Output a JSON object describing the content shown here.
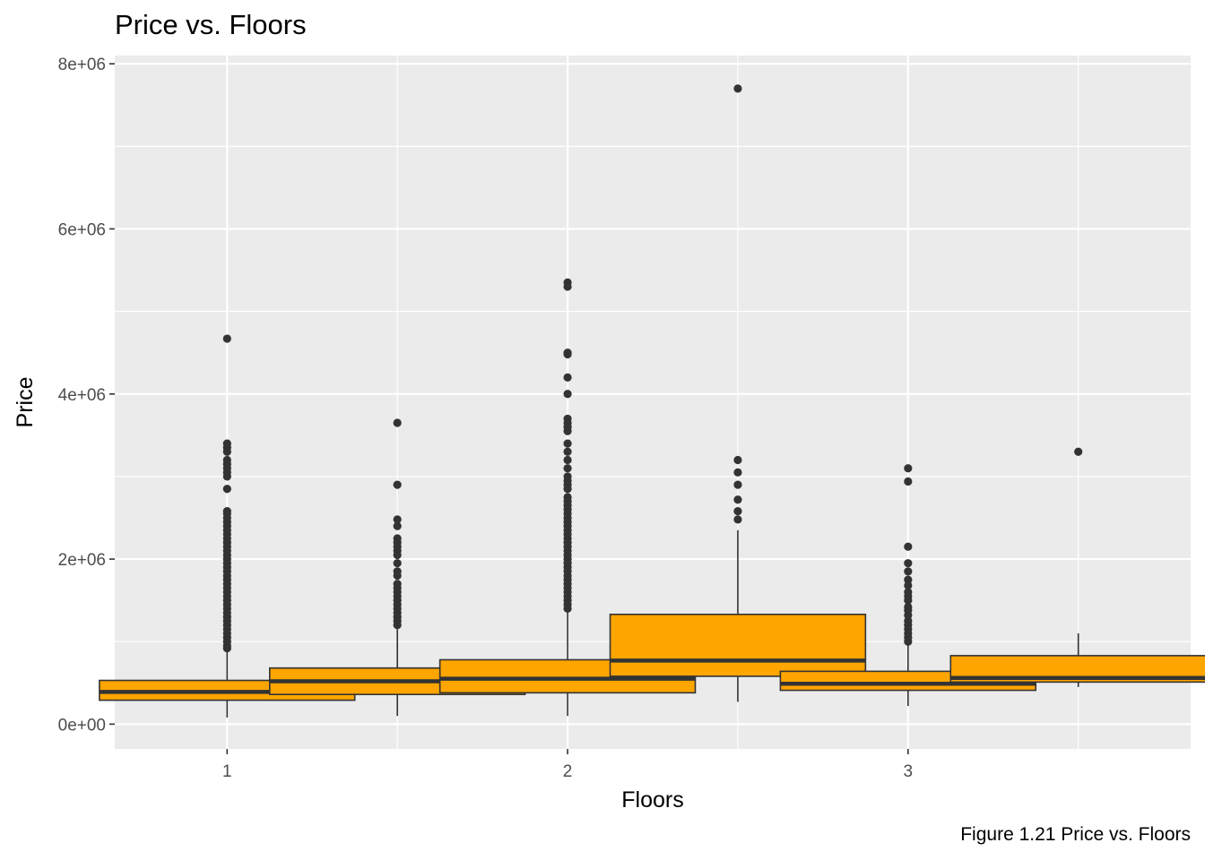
{
  "chart_data": {
    "type": "boxplot",
    "title": "Price vs. Floors",
    "caption": "Figure 1.21 Price vs. Floors",
    "xlabel": "Floors",
    "ylabel": "Price",
    "xlim": [
      0.67,
      3.83
    ],
    "ylim": [
      -300000,
      8100000
    ],
    "x_ticks": [
      1,
      2,
      3
    ],
    "x_tick_labels": [
      "1",
      "2",
      "3"
    ],
    "y_ticks": [
      0,
      2000000,
      4000000,
      6000000,
      8000000
    ],
    "y_tick_labels": [
      "0e+00",
      "2e+06",
      "4e+06",
      "6e+06",
      "8e+06"
    ],
    "grid": true,
    "colors": {
      "panel": "#EBEBEB",
      "grid": "#FFFFFF",
      "box_fill": "#FFA500",
      "box_line": "#333333",
      "outlier": "#333333",
      "axis_text": "#4D4D4D"
    },
    "boxes": [
      {
        "x": 1,
        "q1": 290000,
        "median": 390000,
        "q3": 530000,
        "lower": 80000,
        "upper": 900000,
        "outliers": [
          4670000,
          3400000,
          3350000,
          3300000,
          3200000,
          3150000,
          3100000,
          3050000,
          3000000,
          2850000,
          2580000,
          2550000,
          2500000,
          2450000,
          2400000,
          2350000,
          2300000,
          2250000,
          2200000,
          2150000,
          2100000,
          2050000,
          2000000,
          1950000,
          1900000,
          1850000,
          1800000,
          1750000,
          1700000,
          1650000,
          1600000,
          1550000,
          1500000,
          1450000,
          1400000,
          1350000,
          1300000,
          1250000,
          1200000,
          1150000,
          1100000,
          1050000,
          1000000,
          950000,
          920000
        ]
      },
      {
        "x": 1.5,
        "q1": 360000,
        "median": 520000,
        "q3": 680000,
        "lower": 100000,
        "upper": 1150000,
        "outliers": [
          3650000,
          2900000,
          2480000,
          2400000,
          2250000,
          2200000,
          2150000,
          2100000,
          2050000,
          1950000,
          1850000,
          1800000,
          1700000,
          1650000,
          1600000,
          1550000,
          1500000,
          1450000,
          1400000,
          1350000,
          1300000,
          1250000,
          1200000
        ]
      },
      {
        "x": 2,
        "q1": 380000,
        "median": 550000,
        "q3": 780000,
        "lower": 100000,
        "upper": 1370000,
        "outliers": [
          5350000,
          5300000,
          4500000,
          4480000,
          4200000,
          4000000,
          3700000,
          3650000,
          3600000,
          3550000,
          3400000,
          3300000,
          3200000,
          3100000,
          3000000,
          2950000,
          2900000,
          2850000,
          2750000,
          2700000,
          2650000,
          2600000,
          2550000,
          2500000,
          2450000,
          2400000,
          2350000,
          2300000,
          2250000,
          2200000,
          2150000,
          2100000,
          2050000,
          2000000,
          1950000,
          1900000,
          1850000,
          1800000,
          1750000,
          1700000,
          1650000,
          1600000,
          1550000,
          1500000,
          1450000,
          1400000
        ]
      },
      {
        "x": 2.5,
        "q1": 580000,
        "median": 770000,
        "q3": 1330000,
        "lower": 270000,
        "upper": 2350000,
        "outliers": [
          7700000,
          3200000,
          3050000,
          2900000,
          2720000,
          2580000,
          2480000
        ]
      },
      {
        "x": 3,
        "q1": 410000,
        "median": 490000,
        "q3": 640000,
        "lower": 220000,
        "upper": 970000,
        "outliers": [
          3100000,
          2940000,
          2150000,
          1950000,
          1850000,
          1750000,
          1680000,
          1600000,
          1550000,
          1500000,
          1420000,
          1380000,
          1320000,
          1250000,
          1200000,
          1150000,
          1100000,
          1050000,
          1000000
        ]
      },
      {
        "x": 3.5,
        "q1": 510000,
        "median": 560000,
        "q3": 830000,
        "lower": 450000,
        "upper": 1100000,
        "outliers": [
          3300000
        ]
      }
    ]
  }
}
